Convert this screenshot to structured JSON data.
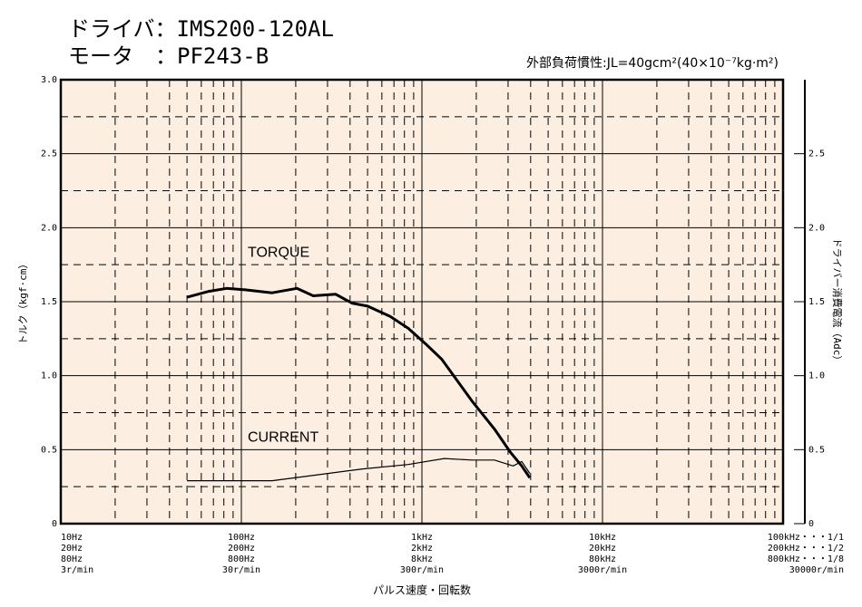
{
  "chart_data": {
    "type": "line",
    "title": "ドライバ：IMS200-120AL",
    "subtitle": "モータ　：PF243-B",
    "annotation": "外部負荷慣性:JL=40gcm²(40×10⁻⁷kg·m²)",
    "xlabel": "パルス速度・回転数",
    "ylabel": "トルク（kgf·cm）",
    "y2label": "ドライバー消費電流（Adc）",
    "log_x": true,
    "grid": true,
    "xlim": [
      10,
      100000
    ],
    "xticks": [
      {
        "value": 10,
        "label": "10Hz"
      },
      {
        "value": 100,
        "label": "100Hz"
      },
      {
        "value": 1000,
        "label": "1kHz"
      },
      {
        "value": 10000,
        "label": "10kHz"
      },
      {
        "value": 100000,
        "label": "100kHz・・・1/1"
      }
    ],
    "xtick_sublabels": [
      [
        "20Hz",
        "80Hz",
        "3r/min"
      ],
      [
        "200Hz",
        "800Hz",
        "30r/min"
      ],
      [
        "2kHz",
        "8kHz",
        "300r/min"
      ],
      [
        "20kHz",
        "80kHz",
        "3000r/min"
      ],
      [
        "200kHz・・・1/2",
        "800kHz・・・1/8",
        "30000r/min"
      ]
    ],
    "ylim": [
      0,
      3
    ],
    "yticks": [
      0,
      0.5,
      {
        "value": 1,
        "label": "1.0"
      },
      1.5,
      {
        "value": 2,
        "label": "2.0"
      },
      2.5,
      {
        "value": 3,
        "label": "3.0"
      }
    ],
    "y2lim": [
      0,
      3
    ],
    "y2ticks": [
      0,
      0.5,
      {
        "value": 1,
        "label": "1.0"
      },
      1.5,
      {
        "value": 2,
        "label": "2.0"
      },
      2.5
    ],
    "series": [
      {
        "name": "TORQUE",
        "color": "#000000",
        "x": [
          50,
          66,
          83,
          105,
          148,
          203,
          250,
          333,
          410,
          500,
          667,
          840,
          1060,
          1290,
          1500,
          1890,
          2520,
          3100,
          3570,
          3960
        ],
        "values": [
          1.53,
          1.57,
          1.59,
          1.58,
          1.56,
          1.59,
          1.54,
          1.55,
          1.49,
          1.47,
          1.4,
          1.32,
          1.21,
          1.11,
          1.0,
          0.83,
          0.64,
          0.48,
          0.39,
          0.31
        ]
      },
      {
        "name": "CURRENT",
        "color": "#000000",
        "axis": "y2",
        "x": [
          50,
          74,
          105,
          148,
          264,
          470,
          840,
          1330,
          1890,
          2520,
          3200,
          3570,
          3960
        ],
        "values": [
          0.29,
          0.29,
          0.29,
          0.29,
          0.33,
          0.37,
          0.4,
          0.44,
          0.43,
          0.43,
          0.39,
          0.42,
          0.34
        ]
      }
    ]
  }
}
